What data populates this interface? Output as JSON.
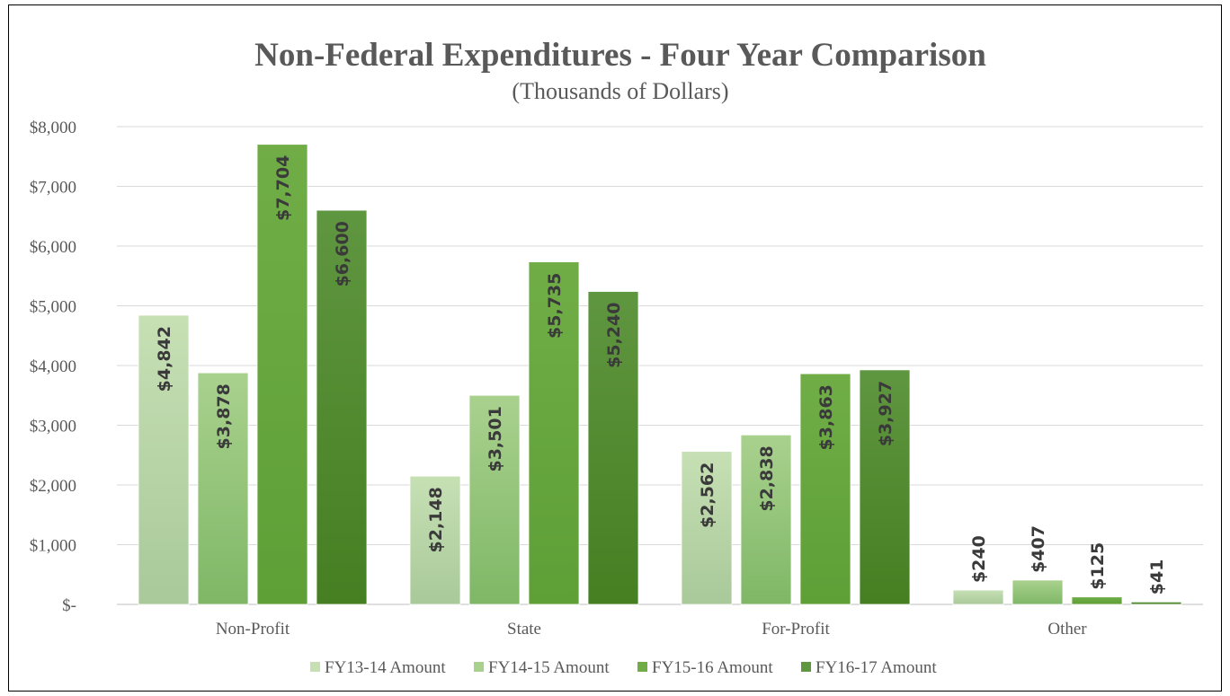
{
  "chart_data": {
    "type": "bar",
    "title": "Non-Federal Expenditures - Four Year Comparison",
    "subtitle": "(Thousands of Dollars)",
    "categories": [
      "Non-Profit",
      "State",
      "For-Profit",
      "Other"
    ],
    "series": [
      {
        "name": "FY13-14 Amount",
        "values": [
          4842,
          2148,
          2562,
          240
        ],
        "labels": [
          "$4,842",
          "$2,148",
          "$2,562",
          "$240"
        ],
        "color_top": "#c6e0b4",
        "color_bottom": "#a9c99a"
      },
      {
        "name": "FY14-15 Amount",
        "values": [
          3878,
          3501,
          2838,
          407
        ],
        "labels": [
          "$3,878",
          "$3,501",
          "$2,838",
          "$407"
        ],
        "color_top": "#a9d18e",
        "color_bottom": "#7fb766"
      },
      {
        "name": "FY15-16 Amount",
        "values": [
          7704,
          5735,
          3863,
          125
        ],
        "labels": [
          "$7,704",
          "$5,735",
          "$3,863",
          "$125"
        ],
        "color_top": "#70ad47",
        "color_bottom": "#5e9f36"
      },
      {
        "name": "FY16-17 Amount",
        "values": [
          6600,
          5240,
          3927,
          41
        ],
        "labels": [
          "$6,600",
          "$5,240",
          "$3,927",
          "$41"
        ],
        "color_top": "#5f9640",
        "color_bottom": "#467f22"
      }
    ],
    "ylim": [
      0,
      8000
    ],
    "yticks": [
      0,
      1000,
      2000,
      3000,
      4000,
      5000,
      6000,
      7000,
      8000
    ],
    "ytick_labels": [
      "$-",
      "$1,000",
      "$2,000",
      "$3,000",
      "$4,000",
      "$5,000",
      "$6,000",
      "$7,000",
      "$8,000"
    ],
    "grid": true,
    "legend_position": "bottom"
  }
}
